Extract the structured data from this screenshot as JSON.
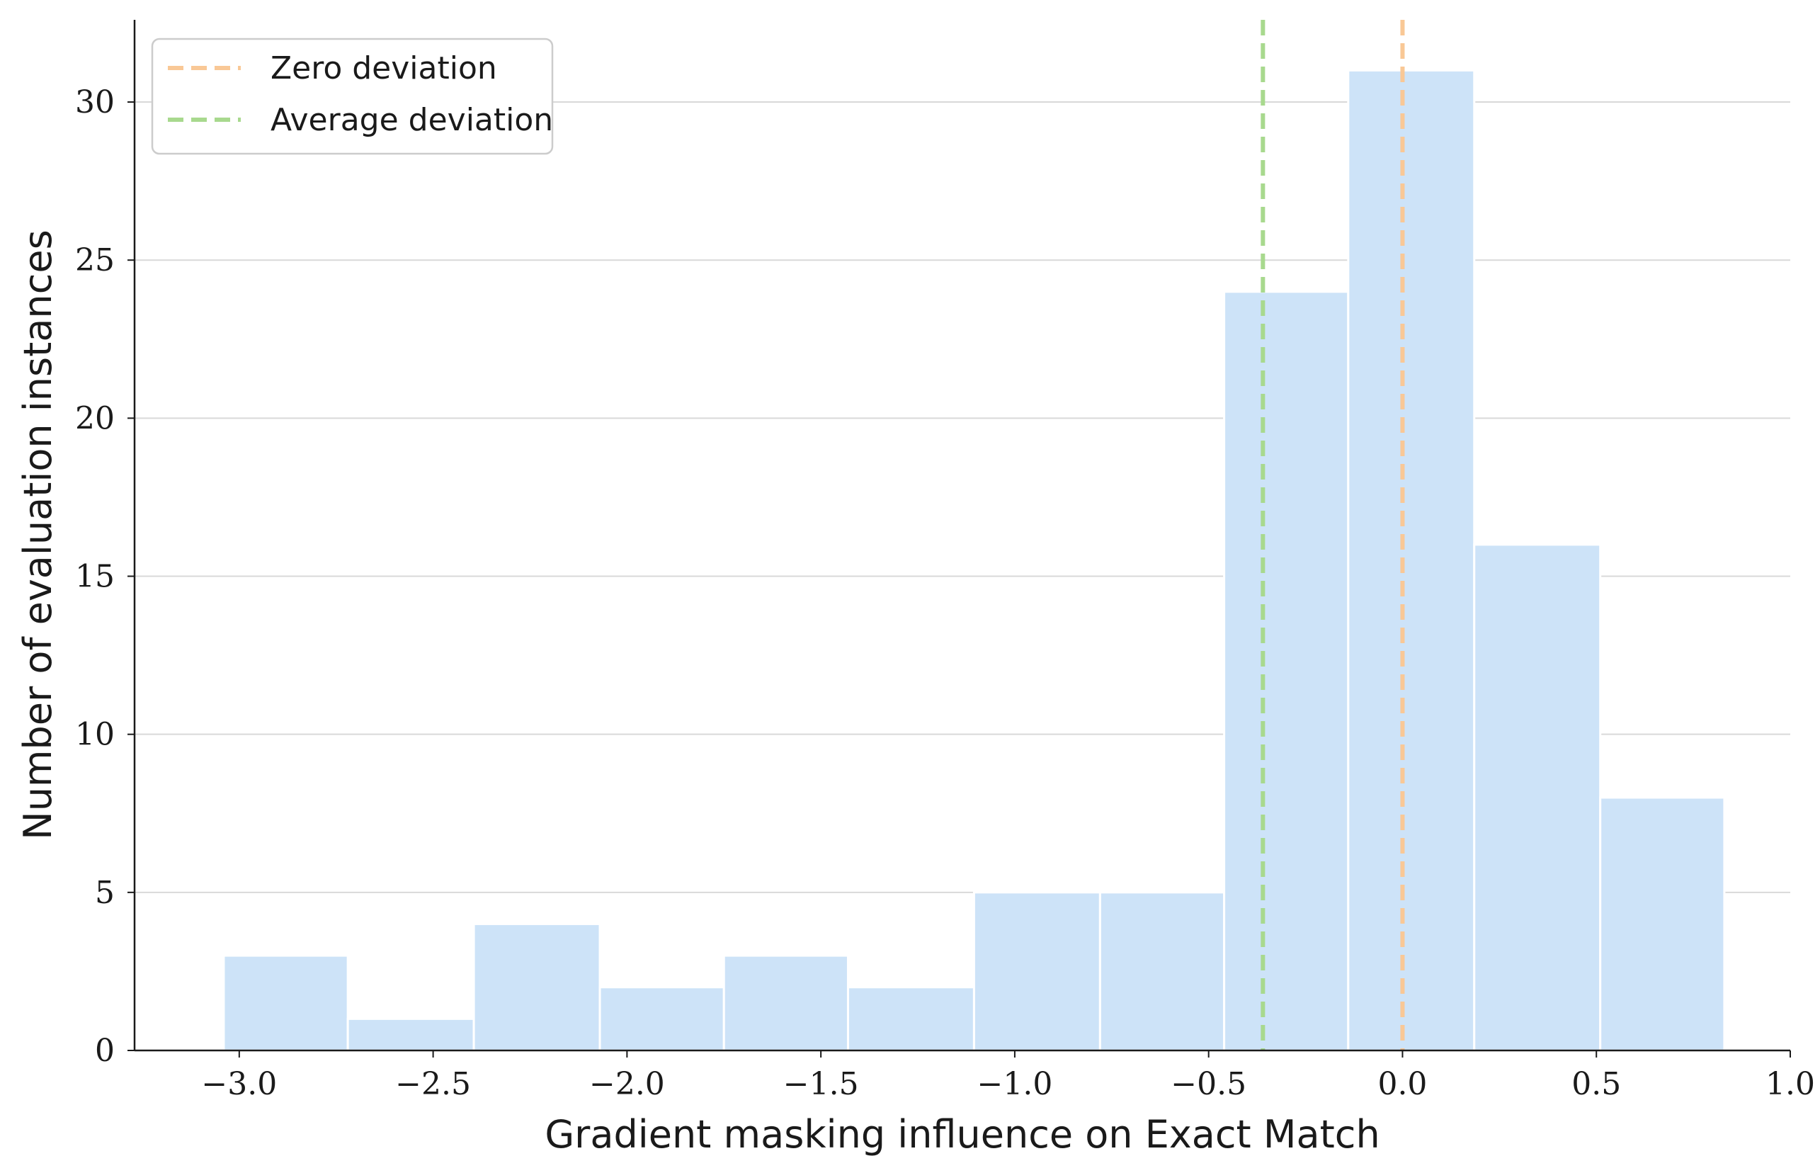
{
  "chart_data": {
    "type": "bar",
    "subtype": "histogram",
    "xlabel": "Gradient masking influence on Exact Match",
    "ylabel": "Number of evaluation instances",
    "xlim": [
      -3.27,
      1.0
    ],
    "ylim": [
      0,
      32.6
    ],
    "xticks": [
      -3.0,
      -2.5,
      -2.0,
      -1.5,
      -1.0,
      -0.5,
      0.0,
      0.5,
      1.0
    ],
    "xtick_labels": [
      "−3.0",
      "−2.5",
      "−2.0",
      "−1.5",
      "−1.0",
      "−0.5",
      "0.0",
      "0.5",
      "1.0"
    ],
    "yticks": [
      0,
      5,
      10,
      15,
      20,
      25,
      30
    ],
    "ytick_labels": [
      "0",
      "5",
      "10",
      "15",
      "20",
      "25",
      "30"
    ],
    "grid": "horizontal",
    "bins": [
      {
        "x0": -3.04,
        "x1": -2.72,
        "count": 3
      },
      {
        "x0": -2.72,
        "x1": -2.395,
        "count": 1
      },
      {
        "x0": -2.395,
        "x1": -2.07,
        "count": 4
      },
      {
        "x0": -2.07,
        "x1": -1.75,
        "count": 2
      },
      {
        "x0": -1.75,
        "x1": -1.43,
        "count": 3
      },
      {
        "x0": -1.43,
        "x1": -1.105,
        "count": 2
      },
      {
        "x0": -1.105,
        "x1": -0.78,
        "count": 5
      },
      {
        "x0": -0.78,
        "x1": -0.46,
        "count": 5
      },
      {
        "x0": -0.46,
        "x1": -0.14,
        "count": 24
      },
      {
        "x0": -0.14,
        "x1": 0.185,
        "count": 31
      },
      {
        "x0": 0.185,
        "x1": 0.51,
        "count": 16
      },
      {
        "x0": 0.51,
        "x1": 0.83,
        "count": 8
      }
    ],
    "reference_lines": [
      {
        "name": "Zero deviation",
        "x": 0.0,
        "color": "#f9c896"
      },
      {
        "name": "Average deviation",
        "x": -0.36,
        "color": "#a8d98e"
      }
    ],
    "legend": {
      "placement": "top-left",
      "entries": [
        "Zero deviation",
        "Average deviation"
      ]
    },
    "colors": {
      "bar_fill": "#cde3f8",
      "bar_edge": "#ffffff",
      "grid": "#d9d9d9",
      "axis": "#1a1a1a"
    }
  }
}
